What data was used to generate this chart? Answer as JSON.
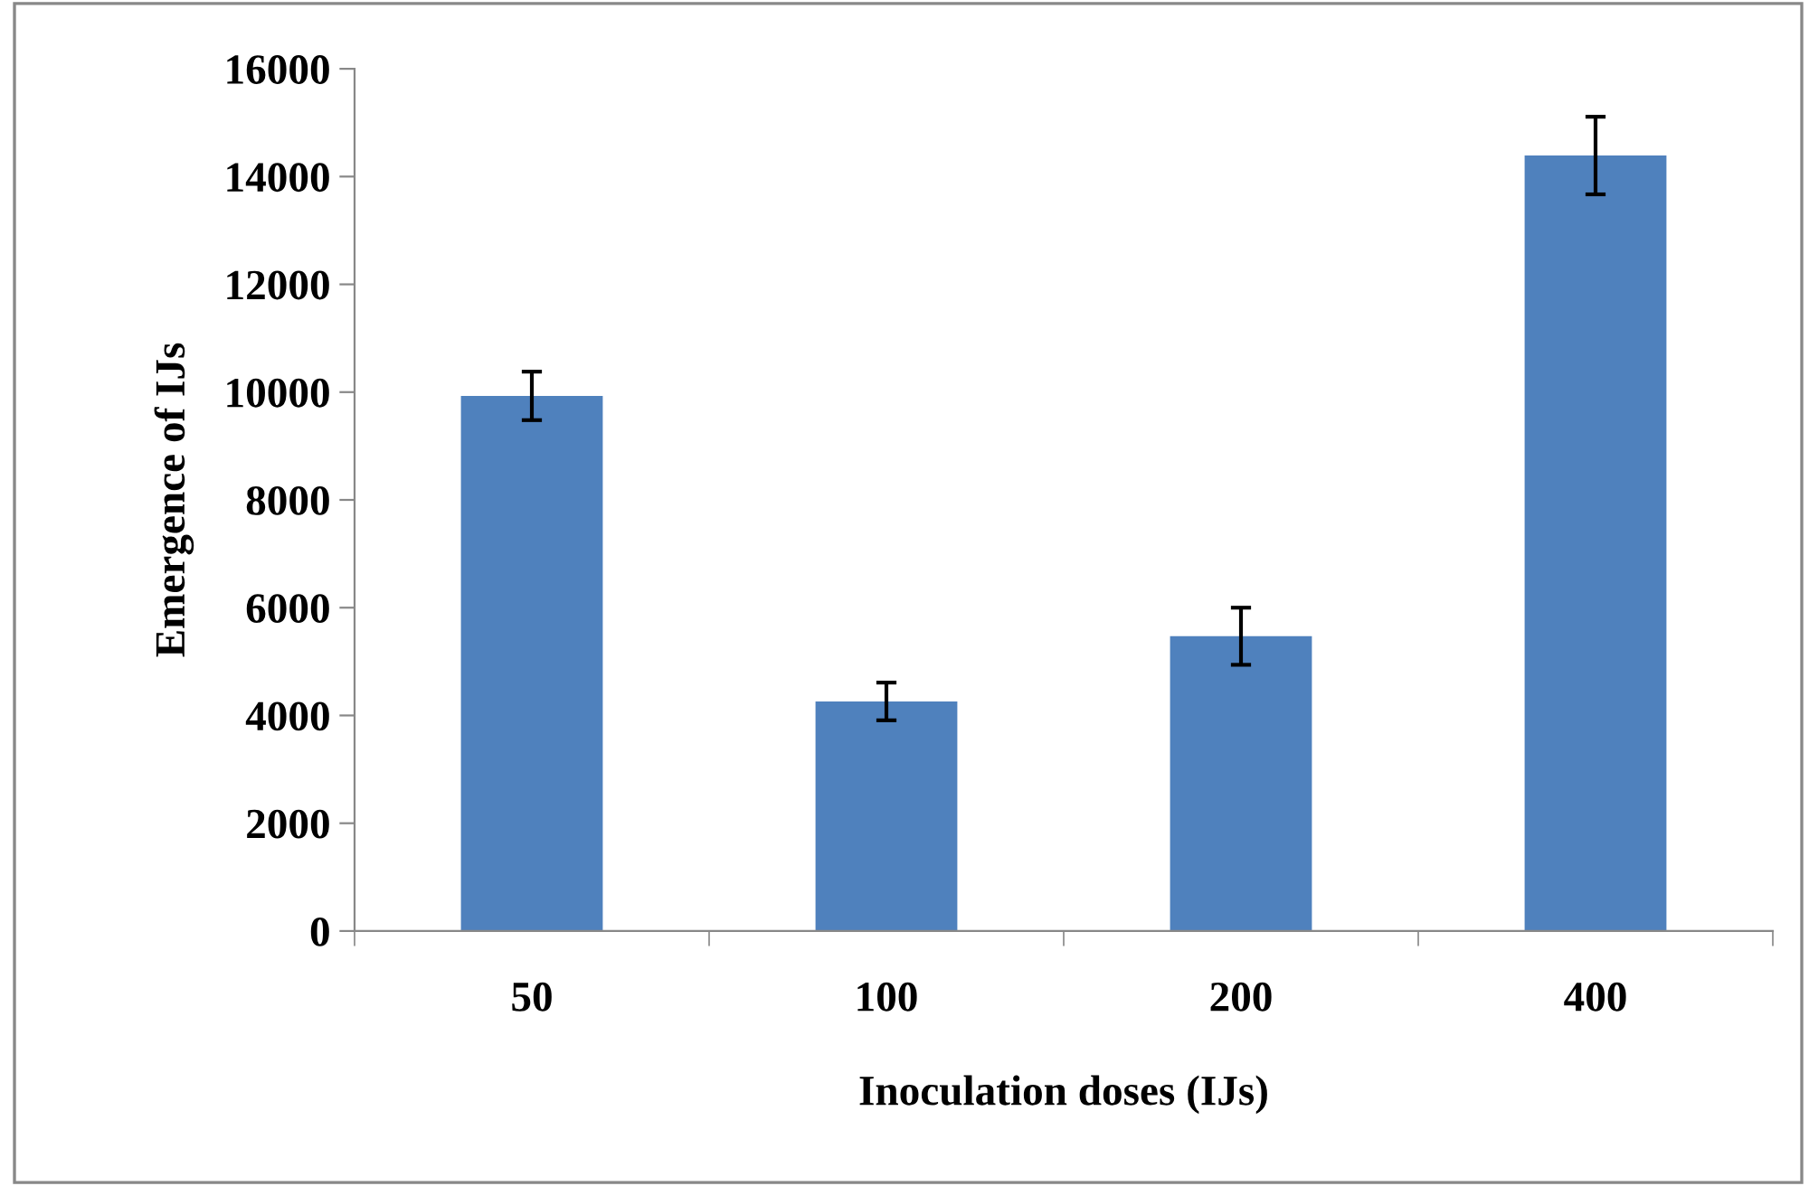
{
  "chart_data": {
    "type": "bar",
    "xlabel": "Inoculation doses (IJs)",
    "ylabel": "Emergence of IJs",
    "categories": [
      "50",
      "100",
      "200",
      "400"
    ],
    "values": [
      9930,
      4260,
      5470,
      14390
    ],
    "errors": [
      450,
      350,
      530,
      720
    ],
    "color": "#4f81bd",
    "ylim": [
      0,
      16000
    ],
    "yticks": [
      0,
      2000,
      4000,
      6000,
      8000,
      10000,
      12000,
      14000,
      16000
    ],
    "grid": false,
    "legend": false
  }
}
